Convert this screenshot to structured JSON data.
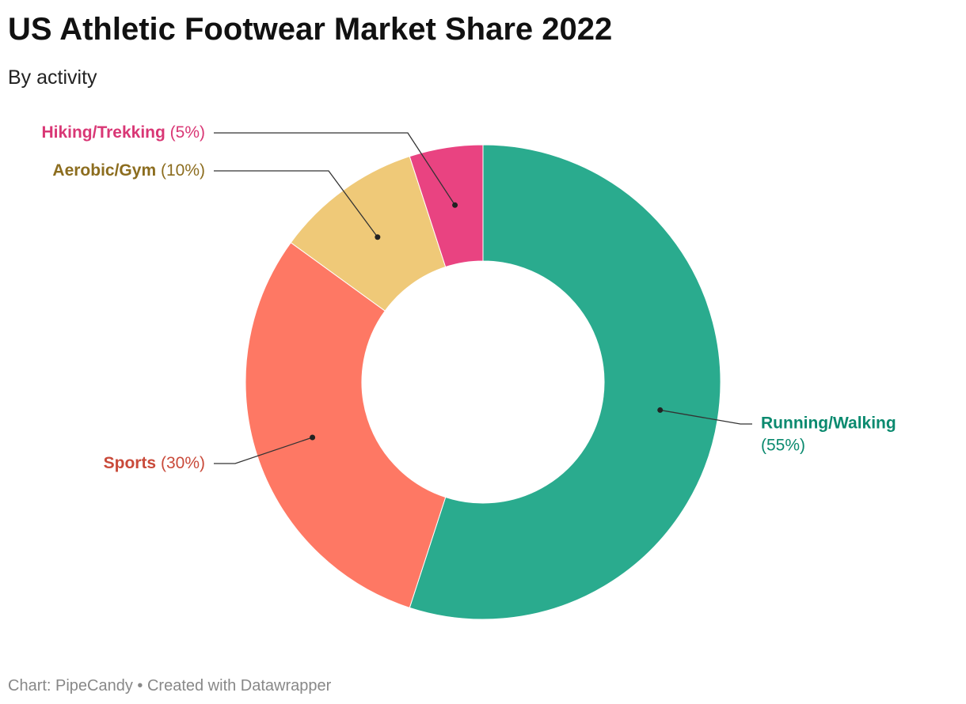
{
  "chart_data": {
    "type": "donut",
    "title": "US Athletic Footwear Market Share 2022",
    "subtitle": "By activity",
    "source": "Chart: PipeCandy • Created with Datawrapper",
    "categories": [
      "Running/Walking",
      "Sports",
      "Aerobic/Gym",
      "Hiking/Trekking"
    ],
    "values": [
      55,
      30,
      10,
      5
    ],
    "value_labels": [
      "(55%)",
      "(30%)",
      "(10%)",
      "(5%)"
    ],
    "colors": [
      "#2aab8e",
      "#fe7864",
      "#efc978",
      "#e94381"
    ],
    "label_colors": [
      "#0b8a6f",
      "#c94a3a",
      "#8c6d1f",
      "#d93775"
    ]
  }
}
